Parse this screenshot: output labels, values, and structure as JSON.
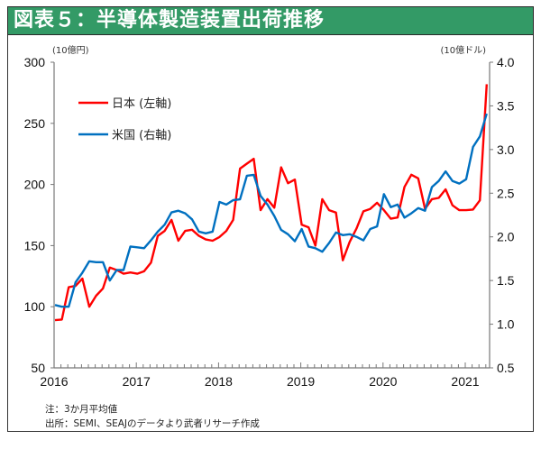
{
  "title": "図表５：半導体製造装置出荷推移",
  "notes": {
    "note": "注：3か月平均値",
    "source": "出所：SEMI、SEAJのデータより武者リサーチ作成"
  },
  "colors": {
    "title_bg": "#339a66",
    "japan": "#ff0000",
    "us": "#0070c0"
  },
  "chart_data": {
    "type": "line",
    "title": "半導体製造装置出荷推移",
    "xlabel": "",
    "ylabel_left": "(10億円)",
    "ylabel_right": "(10億ドル)",
    "ylim_left": [
      50,
      300
    ],
    "ylim_right": [
      0.5,
      4.0
    ],
    "yticks_left": [
      "300",
      "250",
      "200",
      "150",
      "100",
      "50"
    ],
    "yticks_right": [
      "4.0",
      "3.5",
      "3.0",
      "2.5",
      "2.0",
      "1.5",
      "1.0",
      "0.5"
    ],
    "xticks": [
      "2016",
      "2017",
      "2018",
      "2019",
      "2020",
      "2021"
    ],
    "x_start": "2016-01",
    "x_frequency": "monthly",
    "grid": false,
    "legend_position": "top-left",
    "series": [
      {
        "name": "日本 (左軸)",
        "axis": "left",
        "values": [
          89,
          89.5,
          116,
          117,
          123,
          100,
          109,
          115,
          132,
          130,
          127,
          128,
          127,
          129,
          136,
          158,
          162,
          171,
          154,
          162,
          163,
          158,
          155,
          154,
          157,
          162,
          171,
          213,
          217,
          221,
          179,
          188,
          181,
          214,
          201,
          204,
          167,
          165,
          150,
          188,
          179,
          177,
          138,
          153,
          164,
          178,
          180,
          185,
          179,
          172,
          173,
          198,
          208,
          205,
          180,
          188,
          189,
          196,
          183,
          179,
          179,
          179.5,
          187,
          282
        ]
      },
      {
        "name": "米国 (右軸)",
        "axis": "right",
        "values": [
          1.22,
          1.2,
          1.2,
          1.48,
          1.59,
          1.72,
          1.71,
          1.71,
          1.5,
          1.62,
          1.62,
          1.89,
          1.88,
          1.87,
          1.96,
          2.06,
          2.14,
          2.28,
          2.3,
          2.27,
          2.2,
          2.06,
          2.04,
          2.06,
          2.4,
          2.37,
          2.42,
          2.43,
          2.7,
          2.71,
          2.47,
          2.37,
          2.24,
          2.08,
          2.03,
          1.95,
          2.09,
          1.89,
          1.87,
          1.83,
          1.93,
          2.05,
          2.02,
          2.03,
          2.0,
          1.96,
          2.09,
          2.12,
          2.49,
          2.34,
          2.37,
          2.22,
          2.27,
          2.33,
          2.3,
          2.57,
          2.64,
          2.75,
          2.64,
          2.61,
          2.66,
          3.03,
          3.15,
          3.41
        ]
      }
    ]
  }
}
